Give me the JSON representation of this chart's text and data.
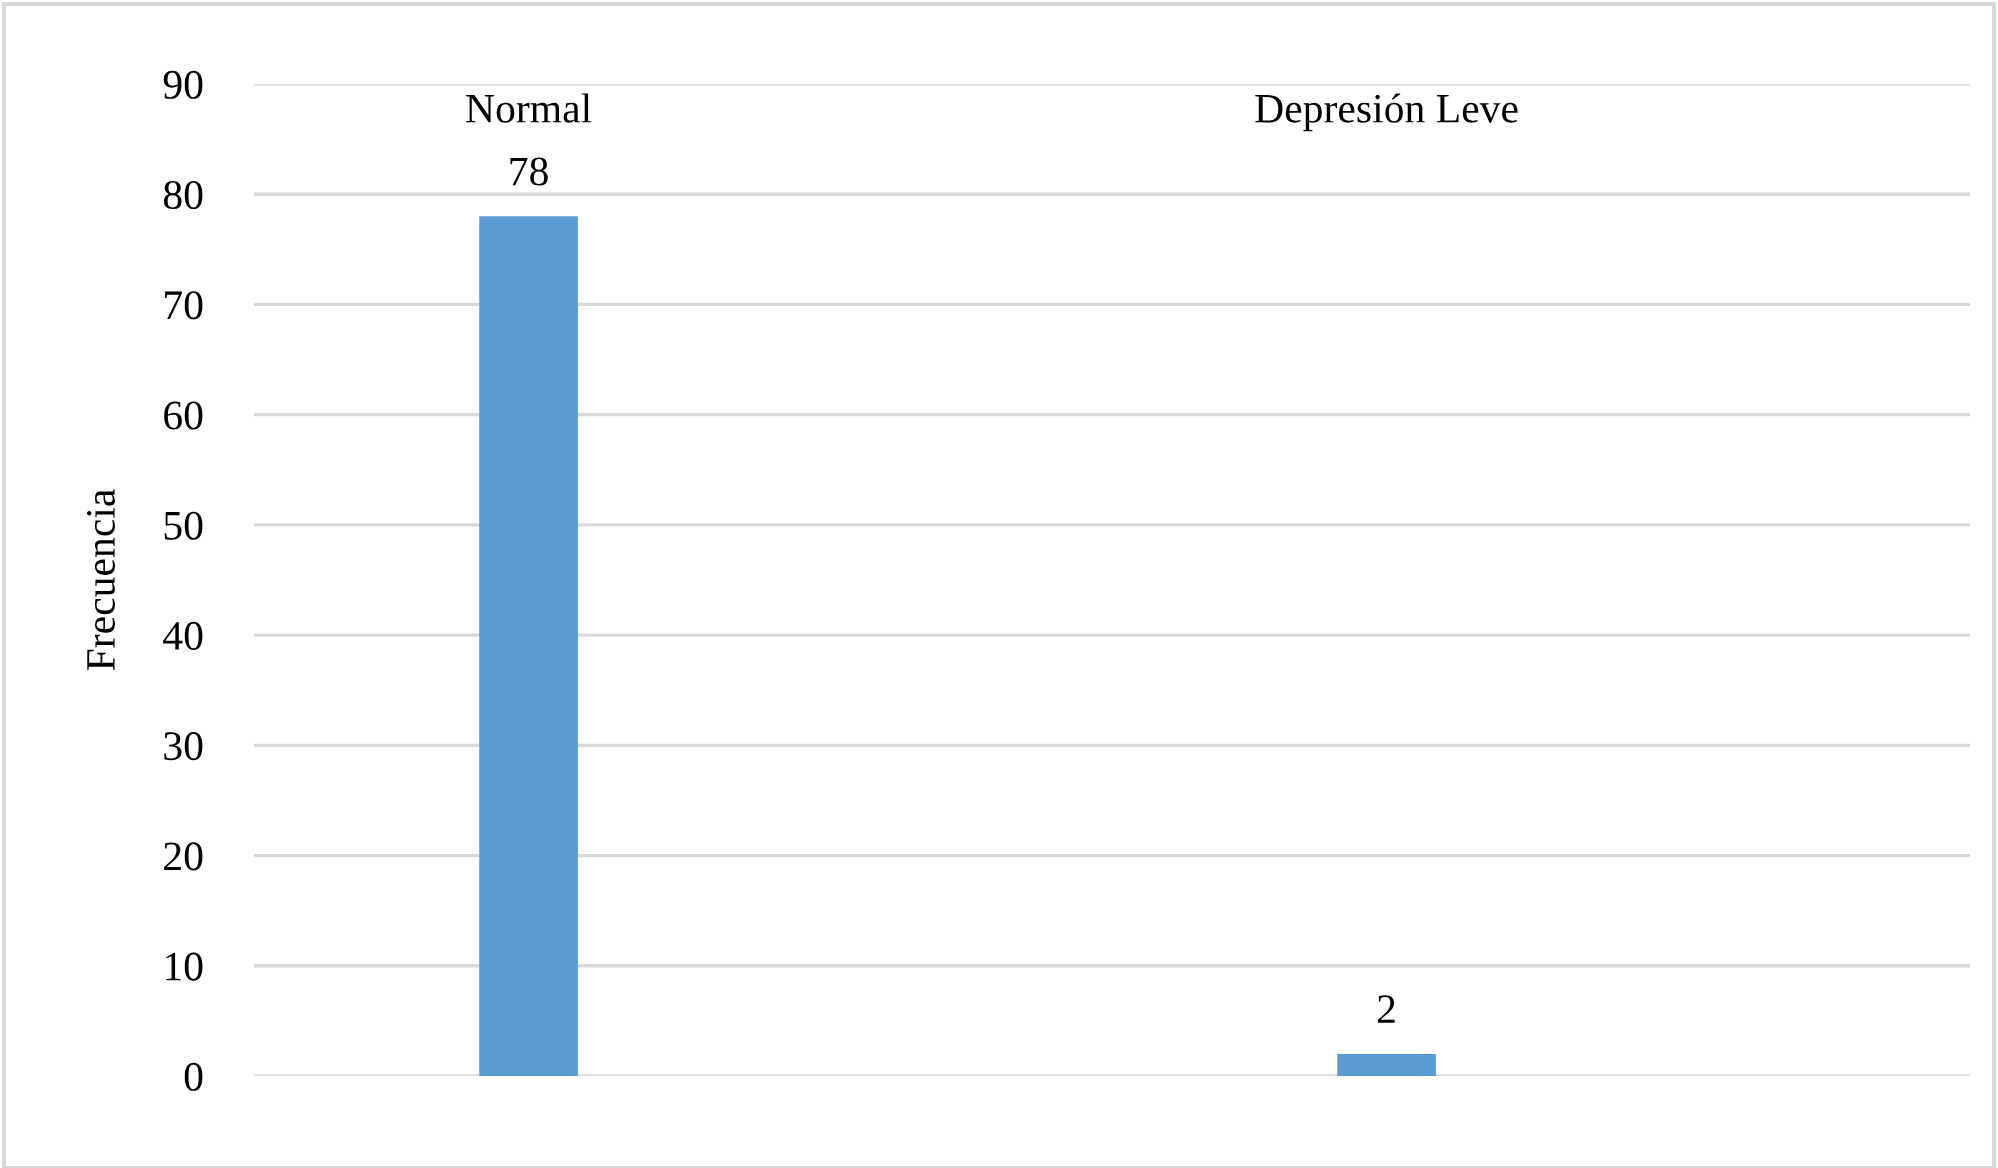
{
  "chart_data": {
    "type": "bar",
    "ylabel": "Frecuencia",
    "categories": [
      "Normal",
      "Depresión Leve"
    ],
    "series": [
      {
        "color": "#5b9bd5",
        "values": [
          78,
          2
        ]
      }
    ],
    "ylim": [
      0,
      90
    ],
    "yticks": [
      0,
      10,
      20,
      30,
      40,
      50,
      60,
      70,
      80,
      90
    ],
    "grid": "y",
    "data_labels": true,
    "legend": false
  }
}
